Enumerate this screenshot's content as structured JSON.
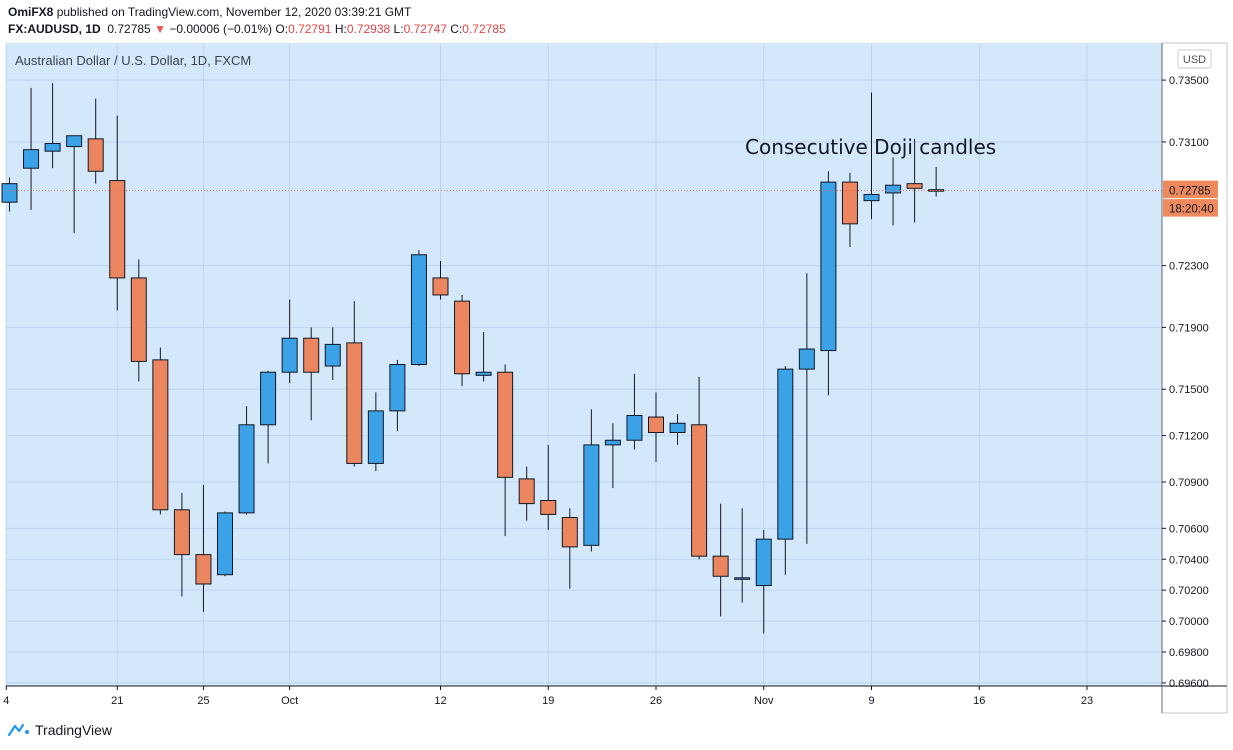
{
  "header": {
    "publisher": "OmiFX8",
    "published_text": "published on TradingView.com, November 12, 2020 03:39:21 GMT",
    "symbol": "FX:AUDUSD, 1D",
    "last": "0.72785",
    "change": "−0.00006 (−0.01%)",
    "o_label": "O:",
    "o": "0.72791",
    "h_label": "H:",
    "h": "0.72938",
    "l_label": "L:",
    "l": "0.72747",
    "c_label": "C:",
    "c": "0.72785"
  },
  "footer": {
    "brand": "TradingView"
  },
  "colors": {
    "chart_bg": "#d4e8fc",
    "up": "#3ca2e8",
    "down": "#ec8660",
    "wick": "#131722",
    "grid": "#bcd5ee",
    "price_tag": "#ee8a5e"
  },
  "chart_data": {
    "type": "candlestick",
    "title": "Australian Dollar / U.S. Dollar, 1D, FXCM",
    "annotation": "Consecutive Doji candles",
    "currency": "USD",
    "ylim": [
      0.6958,
      0.7374
    ],
    "y_ticks": [
      "0.73500",
      "0.73100",
      "0.72300",
      "0.71900",
      "0.71500",
      "0.71200",
      "0.70900",
      "0.70600",
      "0.70400",
      "0.70200",
      "0.70000",
      "0.69800",
      "0.69600"
    ],
    "x_ticks": [
      {
        "i": -0.15,
        "label": "4"
      },
      {
        "i": 5,
        "label": "21"
      },
      {
        "i": 9,
        "label": "25"
      },
      {
        "i": 13,
        "label": "Oct"
      },
      {
        "i": 20,
        "label": "12"
      },
      {
        "i": 25,
        "label": "19"
      },
      {
        "i": 30,
        "label": "26"
      },
      {
        "i": 35,
        "label": "Nov"
      },
      {
        "i": 40,
        "label": "9"
      },
      {
        "i": 45,
        "label": "16"
      },
      {
        "i": 50,
        "label": "23"
      }
    ],
    "last_price": "0.72785",
    "countdown": "18:20:40",
    "candles": [
      {
        "o": 0.7271,
        "h": 0.7287,
        "l": 0.7265,
        "c": 0.7283
      },
      {
        "o": 0.7293,
        "h": 0.7345,
        "l": 0.7266,
        "c": 0.7305
      },
      {
        "o": 0.7304,
        "h": 0.7348,
        "l": 0.7293,
        "c": 0.7309
      },
      {
        "o": 0.7307,
        "h": 0.7313,
        "l": 0.7251,
        "c": 0.7314
      },
      {
        "o": 0.7312,
        "h": 0.7338,
        "l": 0.7283,
        "c": 0.7291
      },
      {
        "o": 0.7285,
        "h": 0.7327,
        "l": 0.7201,
        "c": 0.7222
      },
      {
        "o": 0.7222,
        "h": 0.7234,
        "l": 0.7155,
        "c": 0.7168
      },
      {
        "o": 0.7169,
        "h": 0.7177,
        "l": 0.7069,
        "c": 0.7072
      },
      {
        "o": 0.7072,
        "h": 0.7083,
        "l": 0.7016,
        "c": 0.7043
      },
      {
        "o": 0.7043,
        "h": 0.7088,
        "l": 0.7006,
        "c": 0.7024
      },
      {
        "o": 0.703,
        "h": 0.7071,
        "l": 0.7029,
        "c": 0.707
      },
      {
        "o": 0.707,
        "h": 0.7139,
        "l": 0.7069,
        "c": 0.7127
      },
      {
        "o": 0.7127,
        "h": 0.7162,
        "l": 0.7102,
        "c": 0.7161
      },
      {
        "o": 0.7161,
        "h": 0.7208,
        "l": 0.7154,
        "c": 0.7183
      },
      {
        "o": 0.7183,
        "h": 0.719,
        "l": 0.713,
        "c": 0.7161
      },
      {
        "o": 0.7165,
        "h": 0.719,
        "l": 0.7156,
        "c": 0.7179
      },
      {
        "o": 0.718,
        "h": 0.7207,
        "l": 0.71,
        "c": 0.7102
      },
      {
        "o": 0.7102,
        "h": 0.7148,
        "l": 0.7097,
        "c": 0.7136
      },
      {
        "o": 0.7136,
        "h": 0.7169,
        "l": 0.7123,
        "c": 0.7166
      },
      {
        "o": 0.7166,
        "h": 0.724,
        "l": 0.7165,
        "c": 0.7237
      },
      {
        "o": 0.7222,
        "h": 0.7233,
        "l": 0.7208,
        "c": 0.7211
      },
      {
        "o": 0.7207,
        "h": 0.7211,
        "l": 0.7152,
        "c": 0.716
      },
      {
        "o": 0.7159,
        "h": 0.7187,
        "l": 0.7155,
        "c": 0.7161
      },
      {
        "o": 0.7161,
        "h": 0.7166,
        "l": 0.7055,
        "c": 0.7093
      },
      {
        "o": 0.7092,
        "h": 0.71,
        "l": 0.7065,
        "c": 0.7076
      },
      {
        "o": 0.7078,
        "h": 0.7114,
        "l": 0.7059,
        "c": 0.7069
      },
      {
        "o": 0.7067,
        "h": 0.7073,
        "l": 0.7021,
        "c": 0.7048
      },
      {
        "o": 0.7049,
        "h": 0.7137,
        "l": 0.7045,
        "c": 0.7114
      },
      {
        "o": 0.7114,
        "h": 0.7128,
        "l": 0.7086,
        "c": 0.7117
      },
      {
        "o": 0.7117,
        "h": 0.716,
        "l": 0.7111,
        "c": 0.7133
      },
      {
        "o": 0.7132,
        "h": 0.7148,
        "l": 0.7103,
        "c": 0.7122
      },
      {
        "o": 0.7122,
        "h": 0.7134,
        "l": 0.7114,
        "c": 0.7128
      },
      {
        "o": 0.7127,
        "h": 0.7158,
        "l": 0.704,
        "c": 0.7042
      },
      {
        "o": 0.7042,
        "h": 0.7076,
        "l": 0.7003,
        "c": 0.7029
      },
      {
        "o": 0.7028,
        "h": 0.7073,
        "l": 0.7012,
        "c": 0.7028
      },
      {
        "o": 0.7023,
        "h": 0.7059,
        "l": 0.6992,
        "c": 0.7053
      },
      {
        "o": 0.7053,
        "h": 0.7165,
        "l": 0.703,
        "c": 0.7163
      },
      {
        "o": 0.7163,
        "h": 0.7225,
        "l": 0.705,
        "c": 0.7176
      },
      {
        "o": 0.7175,
        "h": 0.7291,
        "l": 0.7146,
        "c": 0.7284
      },
      {
        "o": 0.7284,
        "h": 0.729,
        "l": 0.7242,
        "c": 0.7257
      },
      {
        "o": 0.7272,
        "h": 0.7342,
        "l": 0.726,
        "c": 0.7276
      },
      {
        "o": 0.7277,
        "h": 0.73,
        "l": 0.7256,
        "c": 0.7282
      },
      {
        "o": 0.7283,
        "h": 0.7312,
        "l": 0.7258,
        "c": 0.728
      },
      {
        "o": 0.72791,
        "h": 0.72938,
        "l": 0.72747,
        "c": 0.72785
      }
    ]
  }
}
